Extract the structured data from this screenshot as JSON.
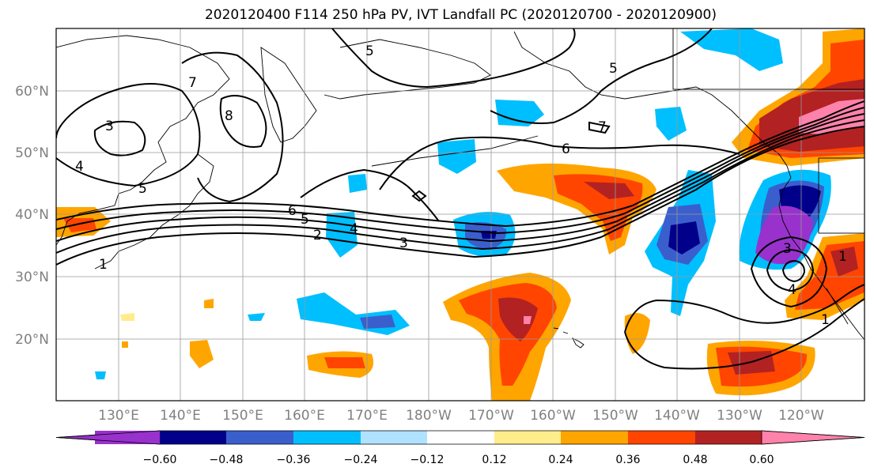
{
  "title": "2020120400 F114 250 hPa PV, IVT Landfall PC (2020120700 - 2020120900)",
  "lat_labels": [
    "60°N",
    "50°N",
    "40°N",
    "30°N",
    "20°N"
  ],
  "lon_labels": [
    "130°E",
    "140°E",
    "150°E",
    "160°E",
    "170°E",
    "180°W",
    "170°W",
    "160°W",
    "150°W",
    "140°W",
    "130°W",
    "120°W"
  ],
  "colorbar": {
    "colors": [
      "#9932cc",
      "#00008b",
      "#3a5fcd",
      "#00bfff",
      "#b0e2ff",
      "#ffffff",
      "#ffec8b",
      "#ffa500",
      "#ff4500",
      "#b22222",
      "#ff82ab"
    ],
    "labels": [
      "−0.60",
      "−0.48",
      "−0.36",
      "−0.24",
      "−0.12",
      "0.12",
      "0.24",
      "0.36",
      "0.48",
      "0.60"
    ]
  },
  "contour_labels": [
    "3",
    "4",
    "5",
    "7",
    "8",
    "5",
    "5",
    "7",
    "6",
    "6",
    "5",
    "4",
    "3",
    "2",
    "1",
    "3",
    "4",
    "1",
    "1"
  ]
}
